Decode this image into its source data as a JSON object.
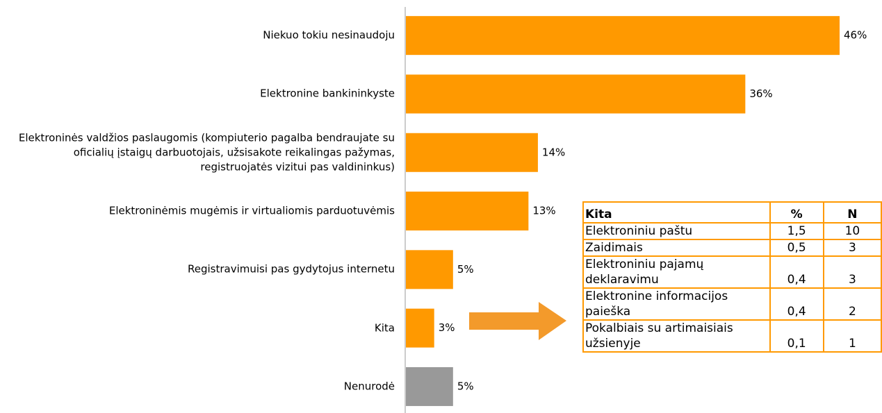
{
  "chart_data": {
    "type": "bar",
    "orientation": "horizontal",
    "categories": [
      "Niekuo tokiu nesinaudoju",
      "Elektronine bankininkyste",
      "Elektroninės valdžios paslaugomis (kompiuterio pagalba bendraujate su oficialių įstaigų darbuotojais, užsisakote reikalingas pažymas, registruojatės vizitui pas valdininkus)",
      "Elektroninėmis mugėmis ir virtualiomis parduotuvėmis",
      "Registravimuisi pas gydytojus internetu",
      "Kita",
      "Nenurodė"
    ],
    "values": [
      46,
      36,
      14,
      13,
      5,
      3,
      5
    ],
    "value_labels": [
      "46%",
      "36%",
      "14%",
      "13%",
      "5%",
      "3%",
      "5%"
    ],
    "colors": [
      "#ff9900",
      "#ff9900",
      "#ff9900",
      "#ff9900",
      "#ff9900",
      "#ff9900",
      "#999999"
    ]
  },
  "table": {
    "header": [
      "Kita",
      "%",
      "N"
    ],
    "rows": [
      [
        "Elektroniniu paštu",
        "1,5",
        "10"
      ],
      [
        "Zaidimais",
        "0,5",
        "3"
      ],
      [
        "Elektroniniu pajamų deklaravimu",
        "0,4",
        "3"
      ],
      [
        "Elektronine informacijos paieška",
        "0,4",
        "2"
      ],
      [
        "Pokalbiais su artimaisiais užsienyje",
        "0,1",
        "1"
      ]
    ]
  }
}
